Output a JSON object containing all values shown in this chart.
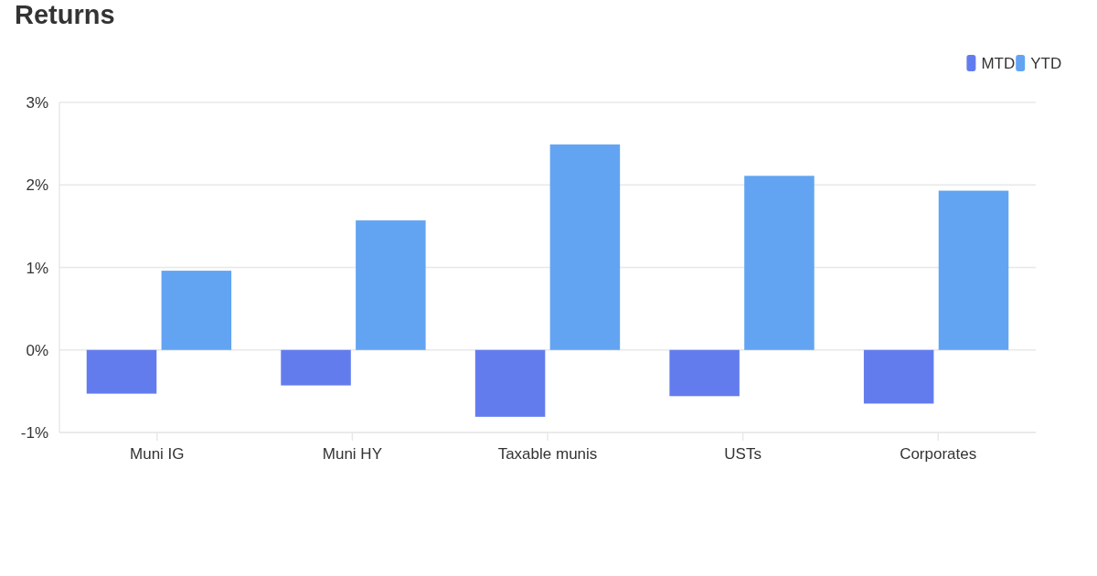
{
  "chart_data": {
    "type": "bar",
    "title": "Returns",
    "categories": [
      "Muni IG",
      "Muni HY",
      "Taxable munis",
      "USTs",
      "Corporates"
    ],
    "series": [
      {
        "name": "MTD",
        "color": "#637ced",
        "values": [
          -0.53,
          -0.43,
          -0.81,
          -0.56,
          -0.65
        ]
      },
      {
        "name": "YTD",
        "color": "#62a4f2",
        "values": [
          0.96,
          1.57,
          2.49,
          2.11,
          1.93
        ]
      }
    ],
    "ylim": [
      -1,
      3
    ],
    "yticks": [
      {
        "value": -1,
        "label": "-1%"
      },
      {
        "value": 0,
        "label": "0%"
      },
      {
        "value": 1,
        "label": "1%"
      },
      {
        "value": 2,
        "label": "2%"
      },
      {
        "value": 3,
        "label": "3%"
      }
    ],
    "grid": "y",
    "legend": "top right"
  }
}
